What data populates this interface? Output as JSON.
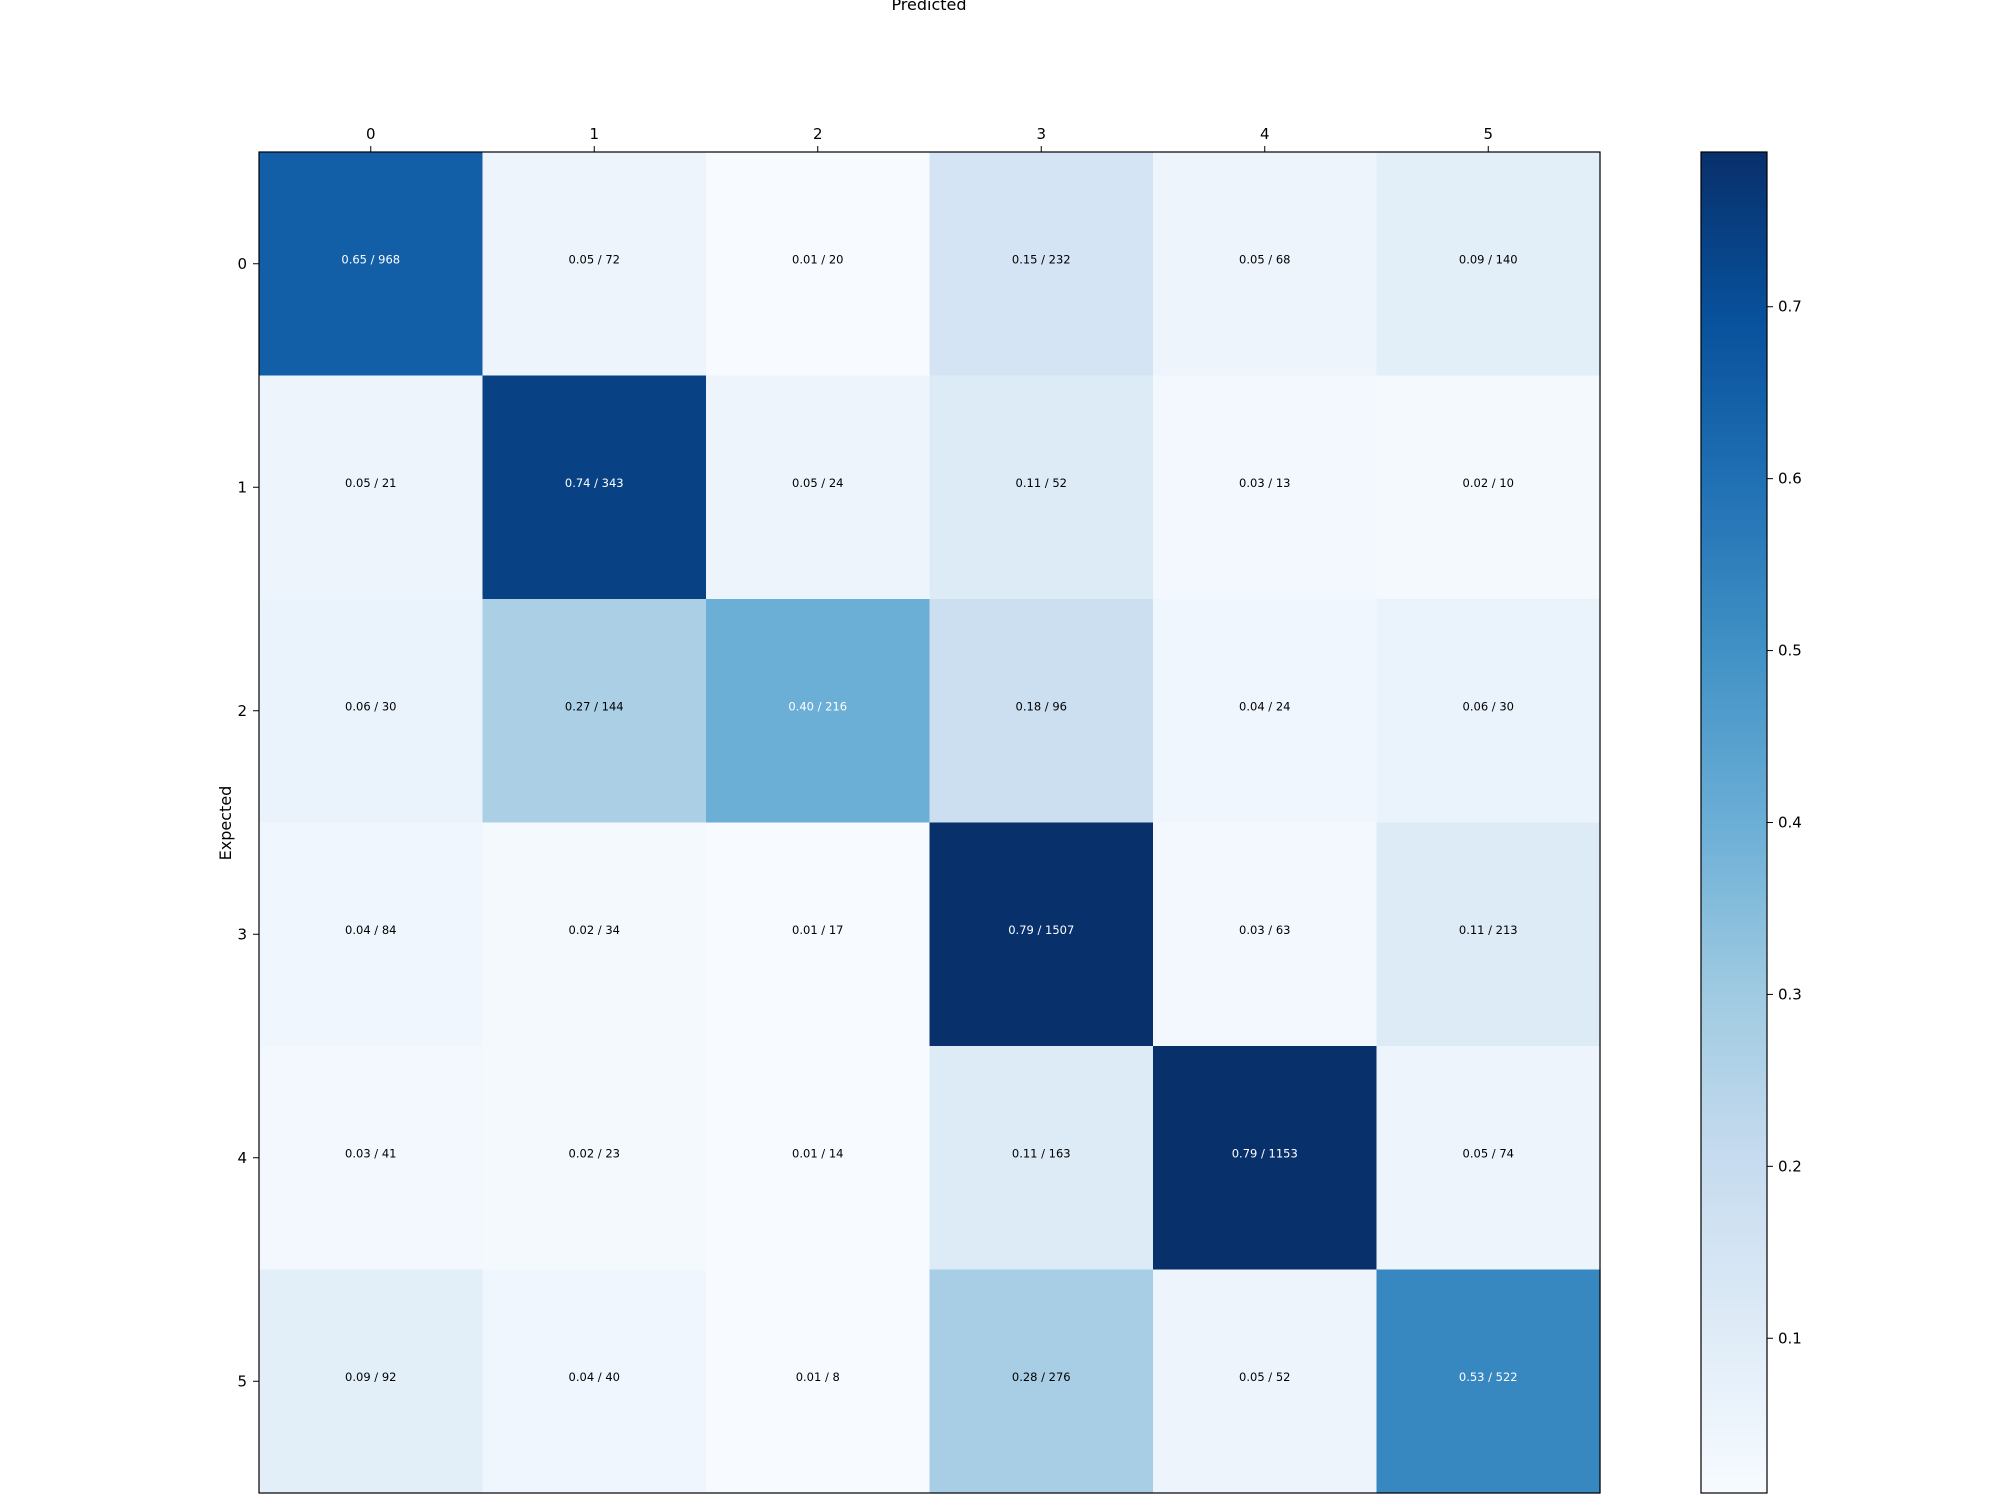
{
  "chart_data": {
    "type": "heatmap",
    "title": "",
    "xlabel": "Predicted",
    "ylabel": "Expected",
    "x_categories": [
      "0",
      "1",
      "2",
      "3",
      "4",
      "5"
    ],
    "y_categories": [
      "0",
      "1",
      "2",
      "3",
      "4",
      "5"
    ],
    "fractions": [
      [
        0.65,
        0.05,
        0.01,
        0.15,
        0.05,
        0.09
      ],
      [
        0.05,
        0.74,
        0.05,
        0.11,
        0.03,
        0.02
      ],
      [
        0.06,
        0.27,
        0.4,
        0.18,
        0.04,
        0.06
      ],
      [
        0.04,
        0.02,
        0.01,
        0.79,
        0.03,
        0.11
      ],
      [
        0.03,
        0.02,
        0.01,
        0.11,
        0.79,
        0.05
      ],
      [
        0.09,
        0.04,
        0.01,
        0.28,
        0.05,
        0.53
      ]
    ],
    "counts": [
      [
        968,
        72,
        20,
        232,
        68,
        140
      ],
      [
        21,
        343,
        24,
        52,
        13,
        10
      ],
      [
        30,
        144,
        216,
        96,
        24,
        30
      ],
      [
        84,
        34,
        17,
        1507,
        63,
        213
      ],
      [
        41,
        23,
        14,
        163,
        1153,
        74
      ],
      [
        92,
        40,
        8,
        276,
        52,
        522
      ]
    ],
    "cell_labels": [
      [
        "0.65 / 968",
        "0.05 / 72",
        "0.01 / 20",
        "0.15 / 232",
        "0.05 / 68",
        "0.09 / 140"
      ],
      [
        "0.05 / 21",
        "0.74 / 343",
        "0.05 / 24",
        "0.11 / 52",
        "0.03 / 13",
        "0.02 / 10"
      ],
      [
        "0.06 / 30",
        "0.27 / 144",
        "0.40 / 216",
        "0.18 / 96",
        "0.04 / 24",
        "0.06 / 30"
      ],
      [
        "0.04 / 84",
        "0.02 / 34",
        "0.01 / 17",
        "0.79 / 1507",
        "0.03 / 63",
        "0.11 / 213"
      ],
      [
        "0.03 / 41",
        "0.02 / 23",
        "0.01 / 14",
        "0.11 / 163",
        "0.79 / 1153",
        "0.05 / 74"
      ],
      [
        "0.09 / 92",
        "0.04 / 40",
        "0.01 / 8",
        "0.28 / 276",
        "0.05 / 52",
        "0.53 / 522"
      ]
    ],
    "colormap": "Blues",
    "color_range": [
      0.01,
      0.79
    ],
    "colorbar_ticks": [
      "0.1",
      "0.2",
      "0.3",
      "0.4",
      "0.5",
      "0.6",
      "0.7"
    ],
    "colorbar_tick_values": [
      0.1,
      0.2,
      0.3,
      0.4,
      0.5,
      0.6,
      0.7
    ],
    "x_axis_position": "top",
    "grid": false
  }
}
